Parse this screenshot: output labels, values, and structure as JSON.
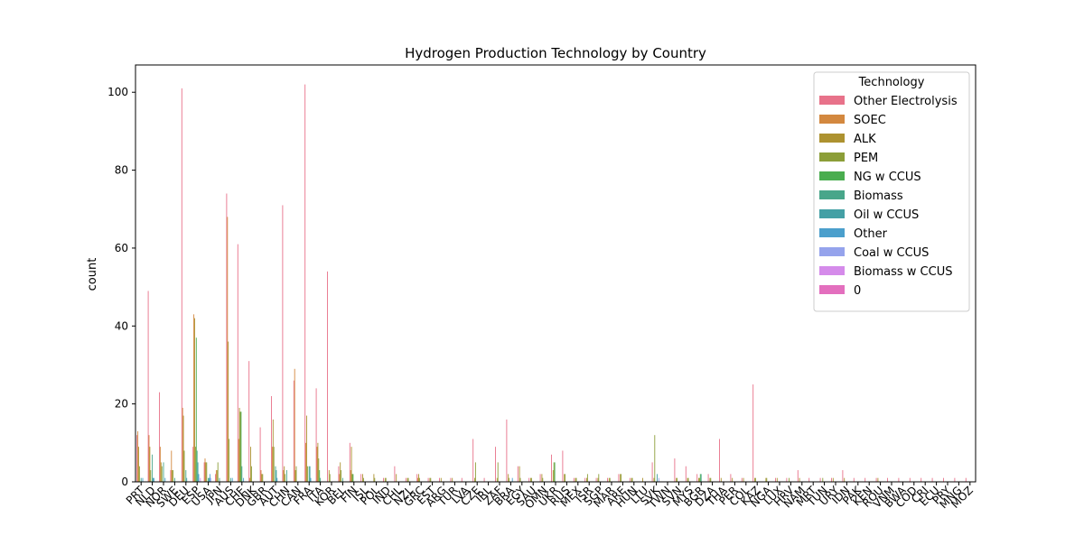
{
  "chart_data": {
    "type": "bar",
    "title": "Hydrogen Production Technology by Country",
    "xlabel": "",
    "ylabel": "count",
    "ylim": [
      0,
      107
    ],
    "yticks": [
      0,
      20,
      40,
      60,
      80,
      100
    ],
    "legend": {
      "title": "Technology",
      "position": "top-right"
    },
    "categories": [
      "PRT",
      "NLD",
      "NOR",
      "SWE",
      "DEU",
      "ESP",
      "USA",
      "JPN",
      "AUS",
      "CHE",
      "DNK",
      "GBR",
      "AUT",
      "CHN",
      "CAN",
      "FRA",
      "ITA",
      "KOR",
      "BEL",
      "FIN",
      "ISL",
      "POL",
      "IND",
      "CHL",
      "NZL",
      "GRC",
      "EST",
      "ARG",
      "TUR",
      "LVA",
      "CZE",
      "IRL",
      "ZAF",
      "BRA",
      "EGY",
      "SAU",
      "OMN",
      "UKR",
      "RUS",
      "MEX",
      "ISR",
      "SGP",
      "MAR",
      "ARE",
      "HUN",
      "LTU",
      "SVK",
      "TWN",
      "SVN",
      "MYS",
      "BGR",
      "DZA",
      "THA",
      "PER",
      "COL",
      "KAZ",
      "NGA",
      "LUX",
      "HRV",
      "NAM",
      "MRT",
      "TUN",
      "URY",
      "IDN",
      "PAK",
      "KEN",
      "ROU",
      "VNM",
      "BWA",
      "COD",
      "CRI",
      "ECU",
      "PRY",
      "MNG",
      "MOZ"
    ],
    "series": [
      {
        "name": "Other Electrolysis",
        "color": "#e8728a",
        "values": [
          12,
          49,
          23,
          3,
          101,
          9,
          5,
          2,
          74,
          61,
          31,
          14,
          22,
          71,
          26,
          102,
          24,
          54,
          4,
          10,
          2,
          0,
          1,
          4,
          1,
          2,
          1,
          1,
          1,
          1,
          11,
          1,
          9,
          16,
          4,
          1,
          2,
          7,
          8,
          1,
          1,
          1,
          1,
          2,
          1,
          0,
          5,
          0,
          6,
          4,
          2,
          2,
          11,
          2,
          1,
          25,
          0,
          1,
          1,
          3,
          1,
          1,
          1,
          3,
          1,
          1,
          1,
          1,
          1,
          1,
          1,
          1,
          1,
          1,
          1
        ]
      },
      {
        "name": "SOEC",
        "color": "#d3883f",
        "values": [
          13,
          12,
          9,
          8,
          19,
          43,
          6,
          3,
          68,
          11,
          1,
          3,
          9,
          3,
          29,
          10,
          9,
          0,
          2,
          3,
          0,
          0,
          0,
          0,
          0,
          1,
          0,
          0,
          0,
          0,
          0,
          0,
          0,
          0,
          0,
          0,
          0,
          0,
          0,
          0,
          0,
          0,
          0,
          0,
          0,
          0,
          0,
          0,
          0,
          0,
          0,
          0,
          0,
          0,
          0,
          0,
          0,
          0,
          0,
          0,
          0,
          0,
          0,
          0,
          0,
          0,
          0,
          0,
          0,
          0,
          0,
          0,
          0,
          0,
          0
        ]
      },
      {
        "name": "ALK",
        "color": "#ad9230",
        "values": [
          9,
          9,
          5,
          3,
          17,
          42,
          5,
          3,
          36,
          19,
          9,
          2,
          16,
          4,
          3,
          17,
          10,
          3,
          5,
          9,
          2,
          2,
          1,
          2,
          1,
          2,
          1,
          1,
          1,
          0,
          1,
          0,
          1,
          2,
          4,
          1,
          2,
          3,
          2,
          1,
          1,
          1,
          1,
          2,
          1,
          1,
          1,
          0,
          1,
          1,
          1,
          1,
          1,
          1,
          1,
          1,
          1,
          1,
          0,
          1,
          0,
          0,
          1,
          1,
          0,
          0,
          1,
          0,
          0,
          0,
          0,
          0,
          0,
          0,
          0
        ]
      },
      {
        "name": "PEM",
        "color": "#8c9e38",
        "values": [
          4,
          3,
          4,
          3,
          8,
          9,
          5,
          5,
          11,
          18,
          4,
          2,
          9,
          2,
          4,
          4,
          6,
          2,
          3,
          2,
          1,
          1,
          1,
          0,
          1,
          1,
          1,
          0,
          0,
          0,
          5,
          0,
          5,
          1,
          1,
          1,
          1,
          5,
          2,
          1,
          2,
          2,
          1,
          2,
          1,
          0,
          12,
          0,
          1,
          1,
          1,
          1,
          0,
          0,
          0,
          1,
          1,
          0,
          1,
          0,
          0,
          1,
          0,
          0,
          0,
          0,
          0,
          0,
          0,
          0,
          0,
          0,
          0,
          0,
          0
        ]
      },
      {
        "name": "NG w CCUS",
        "color": "#4aad4f",
        "values": [
          0,
          0,
          0,
          0,
          0,
          37,
          0,
          0,
          0,
          18,
          0,
          0,
          0,
          0,
          0,
          0,
          3,
          0,
          0,
          2,
          0,
          0,
          0,
          0,
          0,
          0,
          0,
          0,
          0,
          0,
          0,
          0,
          0,
          0,
          0,
          0,
          0,
          5,
          0,
          0,
          0,
          0,
          0,
          0,
          0,
          0,
          0,
          0,
          0,
          0,
          2,
          0,
          0,
          0,
          0,
          0,
          0,
          0,
          0,
          0,
          0,
          0,
          0,
          0,
          0,
          0,
          0,
          0,
          0,
          0,
          0,
          0,
          0,
          0,
          0
        ]
      },
      {
        "name": "Biomass",
        "color": "#48a68a",
        "values": [
          1,
          7,
          5,
          1,
          3,
          8,
          1,
          1,
          1,
          4,
          0,
          0,
          4,
          3,
          0,
          4,
          1,
          0,
          1,
          0,
          0,
          0,
          0,
          0,
          0,
          0,
          0,
          0,
          0,
          0,
          0,
          0,
          0,
          0,
          0,
          0,
          0,
          0,
          0,
          0,
          0,
          0,
          0,
          0,
          0,
          0,
          0,
          0,
          0,
          0,
          2,
          0,
          0,
          0,
          0,
          0,
          0,
          0,
          0,
          0,
          0,
          0,
          0,
          0,
          0,
          0,
          0,
          0,
          0,
          0,
          0,
          0,
          0,
          0,
          0
        ]
      },
      {
        "name": "Oil w CCUS",
        "color": "#44a0a5",
        "values": [
          0,
          1,
          0,
          0,
          1,
          5,
          1,
          0,
          0,
          0,
          0,
          0,
          3,
          0,
          0,
          4,
          0,
          0,
          0,
          0,
          0,
          0,
          0,
          0,
          0,
          0,
          0,
          0,
          0,
          0,
          0,
          0,
          0,
          0,
          0,
          0,
          0,
          0,
          0,
          0,
          0,
          0,
          0,
          0,
          0,
          0,
          2,
          0,
          0,
          0,
          0,
          0,
          0,
          0,
          0,
          0,
          0,
          0,
          0,
          0,
          0,
          0,
          0,
          0,
          0,
          0,
          0,
          0,
          0,
          0,
          0,
          0,
          0,
          0,
          0
        ]
      },
      {
        "name": "Other",
        "color": "#4b9fcc",
        "values": [
          1,
          1,
          1,
          0,
          0,
          2,
          2,
          0,
          1,
          1,
          0,
          0,
          1,
          0,
          0,
          1,
          0,
          0,
          0,
          0,
          0,
          0,
          0,
          0,
          0,
          0,
          0,
          0,
          0,
          0,
          0,
          0,
          0,
          1,
          0,
          0,
          0,
          0,
          0,
          0,
          0,
          0,
          0,
          0,
          0,
          0,
          0,
          0,
          0,
          0,
          0,
          0,
          0,
          0,
          0,
          0,
          0,
          0,
          0,
          0,
          0,
          0,
          0,
          0,
          0,
          0,
          0,
          0,
          0,
          0,
          0,
          0,
          0,
          0,
          0
        ]
      },
      {
        "name": "Coal w CCUS",
        "color": "#95a3ec",
        "values": [
          0,
          0,
          0,
          0,
          0,
          0,
          1,
          0,
          0,
          0,
          0,
          0,
          0,
          0,
          0,
          0,
          0,
          0,
          0,
          0,
          0,
          0,
          0,
          0,
          0,
          0,
          0,
          0,
          0,
          0,
          0,
          0,
          0,
          0,
          0,
          0,
          0,
          0,
          0,
          0,
          0,
          0,
          0,
          0,
          0,
          0,
          1,
          0,
          0,
          0,
          0,
          0,
          0,
          0,
          0,
          0,
          0,
          0,
          0,
          0,
          0,
          0,
          0,
          0,
          0,
          0,
          0,
          0,
          0,
          0,
          0,
          0,
          0,
          0,
          0
        ]
      },
      {
        "name": "Biomass w CCUS",
        "color": "#d58bea",
        "values": [
          0,
          0,
          0,
          0,
          0,
          1,
          0,
          0,
          0,
          0,
          0,
          0,
          0,
          0,
          0,
          0,
          0,
          0,
          0,
          0,
          0,
          0,
          0,
          0,
          0,
          0,
          0,
          0,
          0,
          0,
          0,
          0,
          0,
          0,
          0,
          0,
          0,
          0,
          0,
          0,
          0,
          0,
          0,
          0,
          0,
          0,
          0,
          0,
          0,
          0,
          0,
          0,
          0,
          0,
          0,
          0,
          0,
          0,
          0,
          0,
          0,
          0,
          0,
          0,
          0,
          0,
          0,
          0,
          0,
          0,
          0,
          0,
          0,
          0,
          0
        ]
      },
      {
        "name": "0",
        "color": "#e36fbe",
        "values": [
          0,
          0,
          0,
          0,
          0,
          0,
          0,
          0,
          0,
          0,
          0,
          0,
          0,
          0,
          0,
          0,
          0,
          0,
          0,
          0,
          0,
          0,
          0,
          0,
          0,
          0,
          0,
          0,
          0,
          0,
          0,
          0,
          0,
          0,
          0,
          0,
          0,
          0,
          0,
          0,
          0,
          0,
          0,
          0,
          0,
          0,
          0,
          0,
          0,
          0,
          0,
          0,
          0,
          0,
          0,
          0,
          0,
          0,
          0,
          0,
          0,
          0,
          0,
          0,
          0,
          0,
          0,
          0,
          0,
          0,
          0,
          0,
          0,
          0,
          0
        ]
      }
    ]
  }
}
